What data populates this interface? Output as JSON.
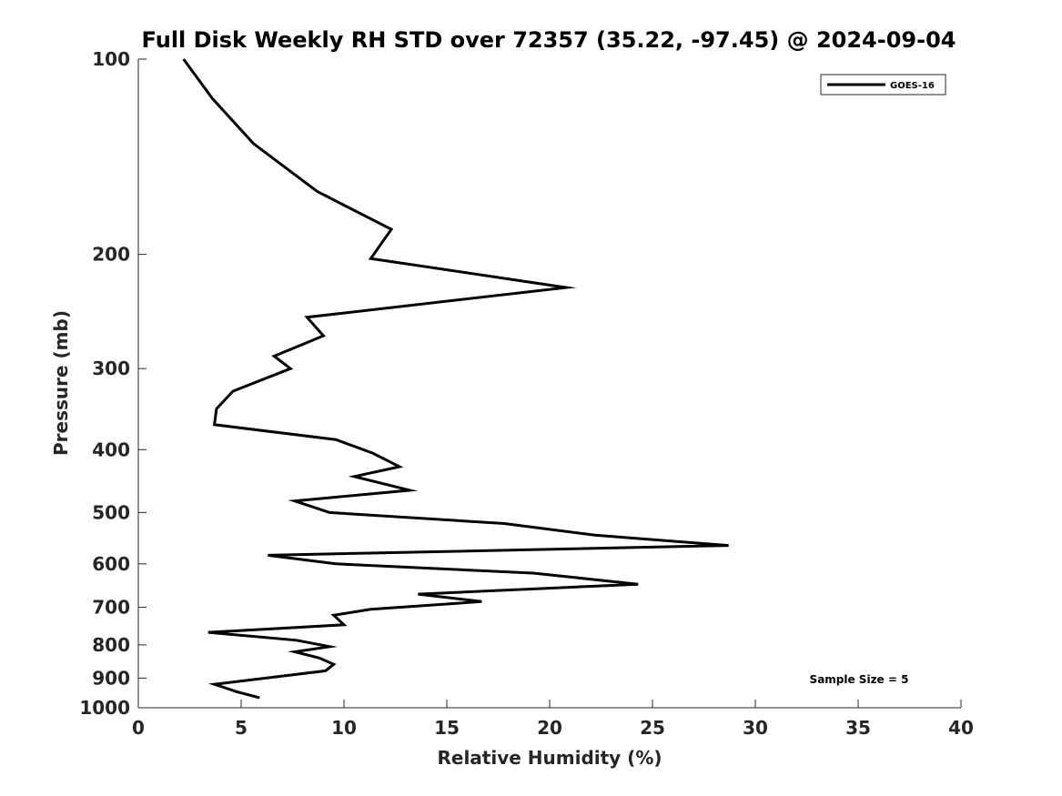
{
  "chart_data": {
    "type": "line",
    "title": "Full Disk Weekly RH STD over 72357 (35.22, -97.45) @ 2024-09-04",
    "xlabel": "Relative Humidity (%)",
    "ylabel": "Pressure (mb)",
    "xlim": [
      0,
      40
    ],
    "ylim": [
      100,
      1000
    ],
    "y_scale": "log",
    "y_reversed": true,
    "x_ticks": [
      0,
      5,
      10,
      15,
      20,
      25,
      30,
      35,
      40
    ],
    "y_ticks": [
      100,
      200,
      300,
      400,
      500,
      600,
      700,
      800,
      900,
      1000
    ],
    "grid": false,
    "legend_position": "top-right",
    "line_color": "#000000",
    "series": [
      {
        "name": "GOES-16",
        "points": [
          [
            2.2,
            100
          ],
          [
            3.6,
            115
          ],
          [
            5.6,
            135
          ],
          [
            8.7,
            160
          ],
          [
            12.3,
            183
          ],
          [
            11.3,
            203
          ],
          [
            20.8,
            225
          ],
          [
            8.2,
            250
          ],
          [
            9.0,
            267
          ],
          [
            6.6,
            287
          ],
          [
            7.4,
            300
          ],
          [
            4.6,
            325
          ],
          [
            3.8,
            346
          ],
          [
            3.7,
            366
          ],
          [
            9.6,
            386
          ],
          [
            11.4,
            405
          ],
          [
            12.7,
            425
          ],
          [
            10.5,
            440
          ],
          [
            13.2,
            462
          ],
          [
            7.6,
            480
          ],
          [
            9.3,
            500
          ],
          [
            17.8,
            520
          ],
          [
            22.2,
            542
          ],
          [
            28.7,
            562
          ],
          [
            6.3,
            582
          ],
          [
            9.6,
            600
          ],
          [
            19.2,
            620
          ],
          [
            24.3,
            645
          ],
          [
            13.6,
            668
          ],
          [
            16.7,
            686
          ],
          [
            11.3,
            705
          ],
          [
            9.5,
            720
          ],
          [
            10.0,
            745
          ],
          [
            3.4,
            765
          ],
          [
            7.7,
            787
          ],
          [
            9.3,
            805
          ],
          [
            7.6,
            820
          ],
          [
            8.8,
            838
          ],
          [
            9.5,
            857
          ],
          [
            9.1,
            877
          ],
          [
            3.7,
            920
          ],
          [
            4.8,
            945
          ],
          [
            5.9,
            965
          ]
        ]
      }
    ],
    "annotations": [
      "Sample Size = 5"
    ]
  }
}
